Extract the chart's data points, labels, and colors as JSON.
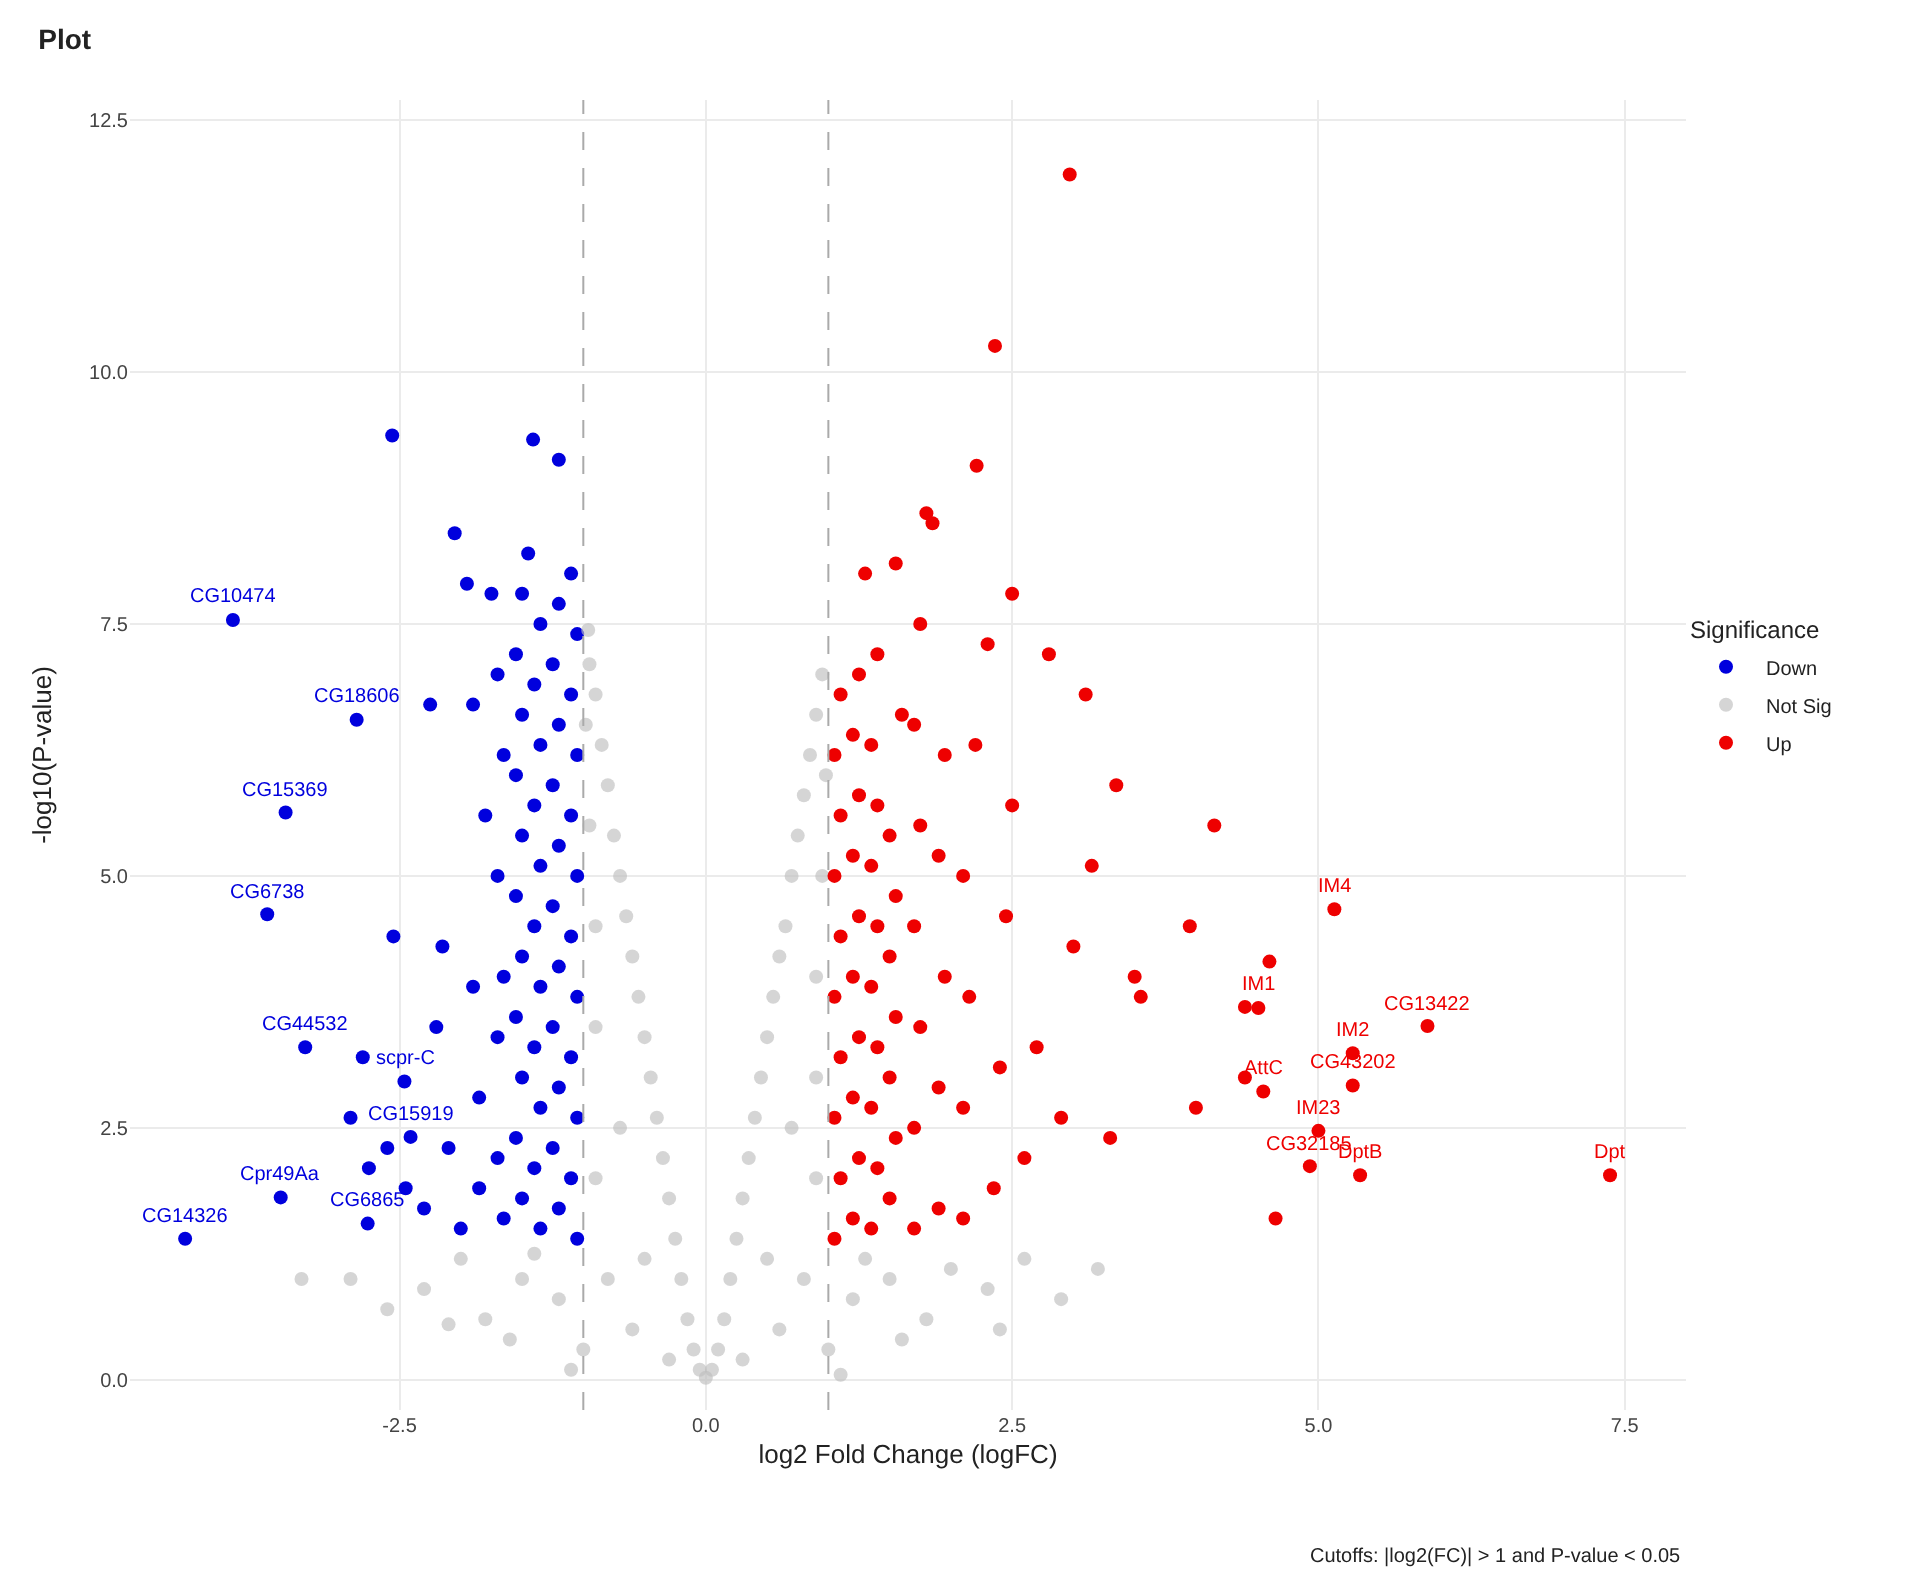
{
  "chart_data": {
    "type": "scatter",
    "title": "Plot",
    "xlabel": "log2 Fold Change (logFC)",
    "ylabel": "-log10(P-value)",
    "legend_title": "Significance",
    "xlim": [
      -4.7,
      8.0
    ],
    "xticks": [
      -2.5,
      {
        "value": 0,
        "label": "0.0"
      },
      2.5,
      {
        "value": 5,
        "label": "5.0"
      },
      7.5
    ],
    "ylim": [
      -0.3,
      12.7
    ],
    "yticks": [
      {
        "value": 0,
        "label": "0.0"
      },
      2.5,
      {
        "value": 5,
        "label": "5.0"
      },
      7.5,
      {
        "value": 10,
        "label": "10.0"
      },
      12.5
    ],
    "grid": true,
    "legend": "right",
    "marker": "circle",
    "ref_lines": [
      {
        "axis": "x",
        "value": -1,
        "color": "#aaaaaa",
        "line_style": "dashed"
      },
      {
        "axis": "x",
        "value": 1,
        "color": "#aaaaaa",
        "line_style": "dashed"
      }
    ],
    "series": [
      {
        "name": "Down",
        "color": "#0000dd",
        "x": [
          -1.05,
          -1.1,
          -1.05,
          -1.1,
          -1.05,
          -1.1,
          -1.05,
          -1.1,
          -1.05,
          -1.1,
          -1.05,
          -1.1,
          -1.2,
          -1.25,
          -1.2,
          -1.25,
          -1.2,
          -1.25,
          -1.2,
          -1.25,
          -1.2,
          -1.25,
          -1.2,
          -1.35,
          -1.4,
          -1.35,
          -1.4,
          -1.35,
          -1.4,
          -1.35,
          -1.4,
          -1.35,
          -1.4,
          -1.35,
          -1.45,
          -1.5,
          -1.55,
          -1.5,
          -1.55,
          -1.5,
          -1.55,
          -1.5,
          -1.55,
          -1.5,
          -1.55,
          -1.5,
          -1.65,
          -1.7,
          -1.7,
          -1.65,
          -1.7,
          -1.65,
          -1.7,
          -1.75,
          -1.85,
          -1.85,
          -1.9,
          -1.8,
          -1.9,
          -1.95,
          -2.05,
          -2.0,
          -2.1,
          -2.2,
          -2.15,
          -2.25,
          -2.3,
          -2.45,
          -2.55,
          -2.6,
          -2.75,
          -2.9,
          -2.8,
          -1.2,
          -1.41,
          -2.56,
          -3.86,
          -2.85,
          -3.43,
          -3.58,
          -3.27,
          -2.46,
          -2.41,
          -3.47,
          -2.76,
          -4.25
        ],
        "values": [
          1.4,
          2.0,
          2.6,
          3.2,
          3.8,
          4.4,
          5.0,
          5.6,
          6.2,
          6.8,
          7.4,
          8.0,
          1.7,
          2.3,
          2.9,
          3.5,
          4.1,
          4.7,
          5.3,
          5.9,
          6.5,
          7.1,
          7.7,
          1.5,
          2.1,
          2.7,
          3.3,
          3.9,
          4.5,
          5.1,
          5.7,
          6.3,
          6.9,
          7.5,
          8.2,
          1.8,
          2.4,
          3.0,
          3.6,
          4.2,
          4.8,
          5.4,
          6.0,
          6.6,
          7.2,
          7.8,
          1.6,
          2.2,
          3.4,
          4.0,
          5.0,
          6.2,
          7.0,
          7.8,
          1.9,
          2.8,
          3.9,
          5.6,
          6.7,
          7.9,
          8.4,
          1.5,
          2.3,
          3.5,
          4.3,
          6.7,
          1.7,
          1.9,
          4.4,
          2.3,
          2.1,
          2.6,
          3.2,
          9.13,
          9.33,
          9.37,
          7.54,
          6.55,
          5.63,
          4.62,
          3.3,
          2.96,
          2.41,
          1.81,
          1.55,
          1.4
        ]
      },
      {
        "name": "Not Sig",
        "color": "#bebebe",
        "x": [
          0,
          0.05,
          -0.05,
          0.1,
          -0.1,
          0.15,
          -0.15,
          0.2,
          -0.2,
          0.25,
          -0.25,
          0.3,
          -0.3,
          0.35,
          -0.35,
          0.4,
          -0.4,
          0.45,
          -0.45,
          0.5,
          -0.5,
          0.55,
          -0.55,
          0.6,
          -0.6,
          0.65,
          -0.65,
          0.7,
          -0.7,
          0.75,
          -0.75,
          0.8,
          -0.8,
          0.85,
          -0.85,
          0.9,
          -0.9,
          0.95,
          -0.95,
          0.98,
          -0.98,
          0.9,
          -0.9,
          0.7,
          -0.7,
          0.5,
          -0.5,
          0.9,
          -0.9,
          0.6,
          -0.6,
          1.0,
          -1.0,
          1.2,
          -1.2,
          1.5,
          -1.5,
          1.8,
          -1.8,
          2.0,
          -2.0,
          2.3,
          -2.3,
          2.6,
          -2.6,
          2.9,
          -2.9,
          3.2,
          -3.3,
          1.3,
          -1.4,
          0.3,
          -0.3,
          0.8,
          -0.8,
          1.1,
          -1.1,
          1.6,
          -1.6,
          2.4,
          -2.1,
          0.9,
          -0.9,
          0.95,
          -0.95,
          -0.96
        ],
        "values": [
          0.02,
          0.1,
          0.1,
          0.3,
          0.3,
          0.6,
          0.6,
          1.0,
          1.0,
          1.4,
          1.4,
          1.8,
          1.8,
          2.2,
          2.2,
          2.6,
          2.6,
          3.0,
          3.0,
          3.4,
          3.4,
          3.8,
          3.8,
          4.2,
          4.2,
          4.5,
          4.6,
          5.0,
          5.0,
          5.4,
          5.4,
          5.8,
          5.9,
          6.2,
          6.3,
          6.6,
          6.8,
          7.0,
          7.1,
          6.0,
          6.5,
          4.0,
          4.5,
          2.5,
          2.5,
          1.2,
          1.2,
          2.0,
          2.0,
          0.5,
          0.5,
          0.3,
          0.3,
          0.8,
          0.8,
          1.0,
          1.0,
          0.6,
          0.6,
          1.1,
          1.2,
          0.9,
          0.9,
          1.2,
          0.7,
          0.8,
          1.0,
          1.1,
          1.0,
          1.2,
          1.25,
          0.2,
          0.2,
          1.0,
          1.0,
          0.05,
          0.1,
          0.4,
          0.4,
          0.5,
          0.55,
          3.0,
          3.5,
          5.0,
          5.5,
          7.44
        ]
      },
      {
        "name": "Up",
        "color": "#ee0000",
        "x": [
          1.05,
          1.1,
          1.05,
          1.1,
          1.05,
          1.1,
          1.05,
          1.1,
          1.05,
          1.1,
          1.2,
          1.25,
          1.2,
          1.25,
          1.2,
          1.25,
          1.2,
          1.25,
          1.2,
          1.25,
          1.35,
          1.4,
          1.35,
          1.4,
          1.35,
          1.4,
          1.35,
          1.4,
          1.35,
          1.4,
          1.5,
          1.55,
          1.5,
          1.55,
          1.5,
          1.55,
          1.5,
          1.6,
          1.55,
          1.7,
          1.7,
          1.75,
          1.7,
          1.75,
          1.7,
          1.75,
          1.9,
          1.9,
          1.95,
          1.9,
          1.95,
          1.85,
          2.1,
          2.1,
          2.15,
          2.1,
          2.2,
          2.3,
          2.35,
          2.4,
          2.45,
          2.5,
          2.5,
          2.6,
          2.7,
          2.8,
          2.9,
          3.0,
          3.1,
          3.15,
          3.35,
          3.3,
          3.5,
          3.55,
          3.95,
          4.15,
          4.0,
          4.4,
          4.4,
          4.6,
          4.65,
          2.97,
          2.36,
          2.21,
          1.8,
          1.3,
          5.13,
          4.51,
          5.89,
          5.28,
          5.28,
          4.55,
          5.0,
          4.93,
          5.34,
          7.38
        ],
        "values": [
          1.4,
          2.0,
          2.6,
          3.2,
          3.8,
          4.4,
          5.0,
          5.6,
          6.2,
          6.8,
          1.6,
          2.2,
          2.8,
          3.4,
          4.0,
          4.6,
          5.2,
          5.8,
          6.4,
          7.0,
          1.5,
          2.1,
          2.7,
          3.3,
          3.9,
          4.5,
          5.1,
          5.7,
          6.3,
          7.2,
          1.8,
          2.4,
          3.0,
          3.6,
          4.2,
          4.8,
          5.4,
          6.6,
          8.1,
          1.5,
          2.5,
          3.5,
          4.5,
          5.5,
          6.5,
          7.5,
          1.7,
          2.9,
          4.0,
          5.2,
          6.2,
          8.5,
          1.6,
          2.7,
          3.8,
          5.0,
          6.3,
          7.3,
          1.9,
          3.1,
          4.6,
          5.7,
          7.8,
          2.2,
          3.3,
          7.2,
          2.6,
          4.3,
          6.8,
          5.1,
          5.9,
          2.4,
          4.0,
          3.8,
          4.5,
          5.5,
          2.7,
          3.0,
          3.7,
          4.15,
          1.6,
          11.96,
          10.26,
          9.07,
          8.6,
          8.0,
          4.67,
          3.69,
          3.51,
          3.24,
          2.92,
          2.86,
          2.47,
          2.12,
          2.03,
          2.03
        ]
      }
    ],
    "annotations": [
      {
        "text": "CG10474",
        "x": -3.86,
        "y": 7.54
      },
      {
        "text": "CG18606",
        "x": -2.85,
        "y": 6.55
      },
      {
        "text": "CG15369",
        "x": -3.43,
        "y": 5.63
      },
      {
        "text": "CG6738",
        "x": -3.58,
        "y": 4.62
      },
      {
        "text": "CG44532",
        "x": -3.27,
        "y": 3.3
      },
      {
        "text": "scpr-C",
        "x": -2.46,
        "y": 2.96
      },
      {
        "text": "CG15919",
        "x": -2.41,
        "y": 2.41
      },
      {
        "text": "Cpr49Aa",
        "x": -3.47,
        "y": 1.81
      },
      {
        "text": "CG6865",
        "x": -2.76,
        "y": 1.55
      },
      {
        "text": "CG14326",
        "x": -4.25,
        "y": 1.4
      },
      {
        "text": "IM4",
        "x": 5.13,
        "y": 4.67
      },
      {
        "text": "IM1",
        "x": 4.51,
        "y": 3.69
      },
      {
        "text": "CG13422",
        "x": 5.89,
        "y": 3.51
      },
      {
        "text": "IM2",
        "x": 5.28,
        "y": 3.24
      },
      {
        "text": "CG43202",
        "x": 5.28,
        "y": 2.92
      },
      {
        "text": "AttC",
        "x": 4.55,
        "y": 2.86
      },
      {
        "text": "IM23",
        "x": 5.0,
        "y": 2.47
      },
      {
        "text": "CG32185",
        "x": 4.93,
        "y": 2.12
      },
      {
        "text": "DptB",
        "x": 5.34,
        "y": 2.03
      },
      {
        "text": "Dpt",
        "x": 7.38,
        "y": 2.03
      },
      "Cutoffs: |log2(FC)| > 1 and P-value < 0.05"
    ]
  }
}
